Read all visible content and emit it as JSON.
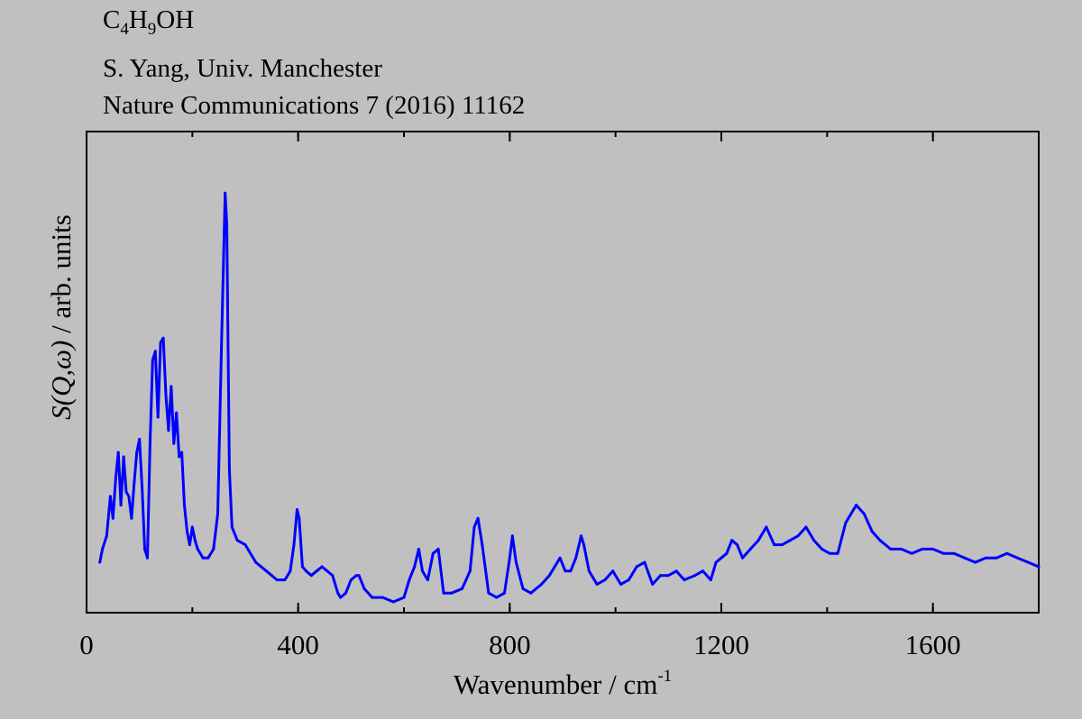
{
  "header": {
    "formula": {
      "parts": [
        {
          "text": "C",
          "sub": false
        },
        {
          "text": "4",
          "sub": true
        },
        {
          "text": "H",
          "sub": false
        },
        {
          "text": "9",
          "sub": true
        },
        {
          "text": "OH",
          "sub": false
        }
      ]
    },
    "author": "S. Yang, Univ. Manchester",
    "reference": "Nature Communications 7 (2016) 11162"
  },
  "chart_data": {
    "type": "line",
    "xlabel": "Wavenumber / cm",
    "xlabel_superscript": "-1",
    "ylabel_italic": "S(Q,ω)",
    "ylabel_rest": " / arb. units",
    "xlim": [
      0,
      1800
    ],
    "ylim": [
      0,
      1.0
    ],
    "x_ticks": [
      0,
      400,
      800,
      1200,
      1600
    ],
    "x_minor_step": 200,
    "y_ticks_shown": false,
    "grid": false,
    "line_color": "#0000ff",
    "series": [
      {
        "x": [
          25,
          30,
          38,
          45,
          50,
          55,
          60,
          65,
          70,
          75,
          80,
          85,
          90,
          95,
          100,
          105,
          110,
          115,
          120,
          125,
          130,
          135,
          140,
          145,
          150,
          155,
          160,
          165,
          170,
          175,
          180,
          185,
          190,
          195,
          200,
          205,
          210,
          220,
          230,
          240,
          248,
          255,
          262,
          265,
          270,
          275,
          285,
          300,
          320,
          340,
          360,
          375,
          385,
          392,
          398,
          402,
          408,
          415,
          425,
          435,
          445,
          455,
          465,
          475,
          480,
          490,
          500,
          510,
          515,
          525,
          540,
          560,
          580,
          600,
          610,
          620,
          628,
          635,
          645,
          655,
          665,
          675,
          690,
          710,
          725,
          733,
          740,
          748,
          760,
          775,
          790,
          800,
          805,
          812,
          825,
          840,
          860,
          875,
          885,
          895,
          905,
          915,
          925,
          935,
          940,
          950,
          965,
          980,
          995,
          1010,
          1025,
          1040,
          1055,
          1070,
          1085,
          1100,
          1115,
          1130,
          1150,
          1165,
          1180,
          1190,
          1200,
          1210,
          1220,
          1230,
          1240,
          1255,
          1270,
          1285,
          1300,
          1315,
          1330,
          1345,
          1360,
          1375,
          1390,
          1405,
          1420,
          1435,
          1455,
          1470,
          1485,
          1500,
          1520,
          1540,
          1560,
          1580,
          1600,
          1620,
          1640,
          1660,
          1680,
          1700,
          1720,
          1740,
          1760,
          1780,
          1800
        ],
        "y": [
          0.09,
          0.12,
          0.15,
          0.24,
          0.19,
          0.28,
          0.34,
          0.22,
          0.33,
          0.25,
          0.24,
          0.19,
          0.27,
          0.34,
          0.37,
          0.26,
          0.12,
          0.1,
          0.36,
          0.55,
          0.57,
          0.42,
          0.59,
          0.6,
          0.47,
          0.39,
          0.49,
          0.36,
          0.43,
          0.33,
          0.34,
          0.22,
          0.16,
          0.13,
          0.17,
          0.14,
          0.12,
          0.1,
          0.1,
          0.12,
          0.2,
          0.58,
          0.93,
          0.86,
          0.3,
          0.17,
          0.14,
          0.13,
          0.09,
          0.07,
          0.05,
          0.05,
          0.07,
          0.13,
          0.21,
          0.19,
          0.08,
          0.07,
          0.06,
          0.07,
          0.08,
          0.07,
          0.06,
          0.02,
          0.01,
          0.02,
          0.05,
          0.06,
          0.06,
          0.03,
          0.01,
          0.01,
          0.0,
          0.01,
          0.05,
          0.08,
          0.12,
          0.07,
          0.05,
          0.11,
          0.12,
          0.02,
          0.02,
          0.03,
          0.07,
          0.17,
          0.19,
          0.13,
          0.02,
          0.01,
          0.02,
          0.1,
          0.15,
          0.09,
          0.03,
          0.02,
          0.04,
          0.06,
          0.08,
          0.1,
          0.07,
          0.07,
          0.1,
          0.15,
          0.13,
          0.07,
          0.04,
          0.05,
          0.07,
          0.04,
          0.05,
          0.08,
          0.09,
          0.04,
          0.06,
          0.06,
          0.07,
          0.05,
          0.06,
          0.07,
          0.05,
          0.09,
          0.1,
          0.11,
          0.14,
          0.13,
          0.1,
          0.12,
          0.14,
          0.17,
          0.13,
          0.13,
          0.14,
          0.15,
          0.17,
          0.14,
          0.12,
          0.11,
          0.11,
          0.18,
          0.22,
          0.2,
          0.16,
          0.14,
          0.12,
          0.12,
          0.11,
          0.12,
          0.12,
          0.11,
          0.11,
          0.1,
          0.09,
          0.1,
          0.1,
          0.11,
          0.1,
          0.09,
          0.08
        ]
      }
    ]
  }
}
